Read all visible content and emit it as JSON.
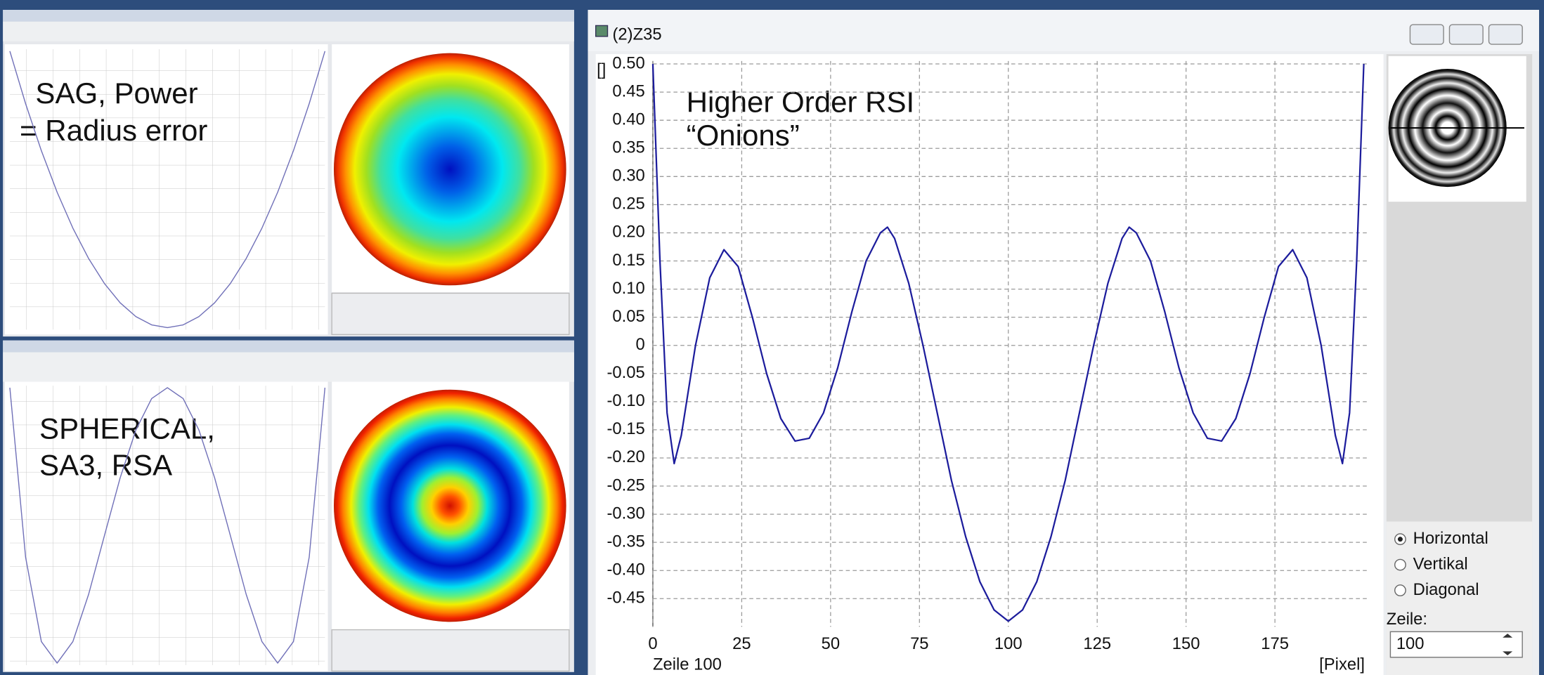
{
  "chart_data": [
    {
      "type": "line",
      "title": "(2)Z35",
      "annotations": [
        "Higher Order RSI",
        "“Onions”"
      ],
      "y_label": "[]",
      "x_label": "[Pixel]",
      "caption": "Zeile 100",
      "color": "#1c1c9c",
      "grid": true,
      "x": [
        0,
        2,
        4,
        6,
        8,
        12,
        16,
        20,
        24,
        28,
        32,
        36,
        40,
        44,
        48,
        52,
        56,
        60,
        64,
        66,
        68,
        72,
        76,
        80,
        84,
        88,
        92,
        96,
        100,
        104,
        108,
        112,
        116,
        120,
        124,
        128,
        132,
        134,
        136,
        140,
        144,
        148,
        152,
        156,
        160,
        164,
        168,
        172,
        176,
        180,
        184,
        188,
        192,
        194,
        196,
        198,
        200
      ],
      "values": [
        0.5,
        0.15,
        -0.12,
        -0.21,
        -0.16,
        0.0,
        0.12,
        0.17,
        0.14,
        0.05,
        -0.05,
        -0.13,
        -0.17,
        -0.165,
        -0.12,
        -0.04,
        0.06,
        0.15,
        0.2,
        0.21,
        0.19,
        0.11,
        0.0,
        -0.12,
        -0.24,
        -0.34,
        -0.42,
        -0.47,
        -0.49,
        -0.47,
        -0.42,
        -0.34,
        -0.24,
        -0.12,
        0.0,
        0.11,
        0.19,
        0.21,
        0.2,
        0.15,
        0.06,
        -0.04,
        -0.12,
        -0.165,
        -0.17,
        -0.13,
        -0.05,
        0.05,
        0.14,
        0.17,
        0.12,
        0.0,
        -0.16,
        -0.21,
        -0.12,
        0.15,
        0.5
      ],
      "xlim": [
        0,
        201
      ],
      "xticks": [
        0,
        25,
        50,
        75,
        100,
        125,
        150,
        175
      ],
      "ylim": [
        -0.5,
        0.5
      ],
      "yticks": [
        {
          "value": 0.5,
          "label": "0.50"
        },
        {
          "value": 0.45,
          "label": "0.45"
        },
        {
          "value": 0.4,
          "label": "0.40"
        },
        {
          "value": 0.35,
          "label": "0.35"
        },
        {
          "value": 0.3,
          "label": "0.30"
        },
        {
          "value": 0.25,
          "label": "0.25"
        },
        {
          "value": 0.2,
          "label": "0.20"
        },
        {
          "value": 0.15,
          "label": "0.15"
        },
        {
          "value": 0.1,
          "label": "0.10"
        },
        {
          "value": 0.05,
          "label": "0.05"
        },
        0,
        {
          "value": -0.05,
          "label": "-0.05"
        },
        {
          "value": -0.1,
          "label": "-0.10"
        },
        {
          "value": -0.15,
          "label": "-0.15"
        },
        {
          "value": -0.2,
          "label": "-0.20"
        },
        {
          "value": -0.25,
          "label": "-0.25"
        },
        {
          "value": -0.3,
          "label": "-0.30"
        },
        {
          "value": -0.35,
          "label": "-0.35"
        },
        {
          "value": -0.4,
          "label": "-0.40"
        },
        {
          "value": -0.45,
          "label": "-0.45"
        }
      ]
    },
    {
      "type": "line",
      "annotations": [
        "SAG, Power",
        "= Radius error"
      ],
      "color": "#7070b8",
      "x": [
        0,
        10,
        20,
        30,
        40,
        50,
        60,
        70,
        80,
        90,
        100,
        110,
        120,
        130,
        140,
        150,
        160,
        170,
        180,
        190,
        200
      ],
      "values": [
        1,
        0.81,
        0.64,
        0.49,
        0.36,
        0.25,
        0.16,
        0.09,
        0.04,
        0.01,
        0,
        0.01,
        0.04,
        0.09,
        0.16,
        0.25,
        0.36,
        0.49,
        0.64,
        0.81,
        1
      ],
      "xlim": [
        0,
        200
      ],
      "ylim": [
        0,
        1
      ]
    },
    {
      "type": "line",
      "annotations": [
        "SPHERICAL,",
        "SA3, RSA"
      ],
      "color": "#7070b8",
      "x": [
        0,
        10,
        20,
        30,
        40,
        50,
        60,
        70,
        80,
        90,
        100,
        110,
        120,
        130,
        140,
        150,
        160,
        170,
        180,
        190,
        200
      ],
      "values": [
        1,
        0.0766,
        -0.3824,
        -0.4994,
        -0.3824,
        -0.125,
        0.1936,
        0.5086,
        0.7696,
        0.9406,
        1,
        0.9406,
        0.7696,
        0.5086,
        0.1936,
        -0.125,
        -0.3824,
        -0.4994,
        -0.3824,
        0.0766,
        1
      ],
      "xlim": [
        0,
        200
      ],
      "ylim": [
        -0.5,
        1
      ]
    }
  ],
  "controls": {
    "options": [
      "Horizontal",
      "Vertikal",
      "Diagonal"
    ],
    "selected": 0,
    "row_label": "Zeile:",
    "row_value": "100"
  }
}
